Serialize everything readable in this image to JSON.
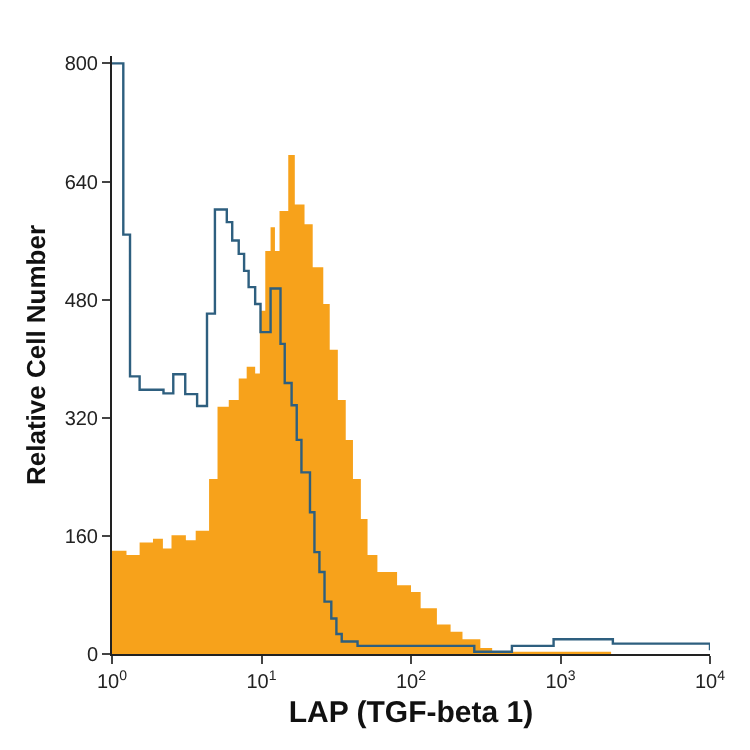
{
  "chart_data": {
    "type": "area",
    "xlabel": "LAP (TGF-beta 1)",
    "ylabel": "Relative Cell Number",
    "log": "x",
    "xlim": [
      1,
      10000
    ],
    "xticks": [
      {
        "value": 1,
        "label": "10$^{0}$"
      },
      {
        "value": 10,
        "label": "10$^{1}$"
      },
      {
        "value": 100,
        "label": "10$^{2}$"
      },
      {
        "value": 1000,
        "label": "10$^{3}$"
      },
      {
        "value": 10000,
        "label": "10$^{4}$"
      }
    ],
    "ylim": [
      0,
      810
    ],
    "yticks": [
      0,
      160,
      320,
      480,
      640,
      800
    ],
    "series": [
      {
        "color": "#f7a21b",
        "x": [
          1,
          1.25,
          1.53,
          1.88,
          2.19,
          2.5,
          3.12,
          3.63,
          4.46,
          5.08,
          6.04,
          7.04,
          7.96,
          9.07,
          9.75,
          10.6,
          11.5,
          12.3,
          13.2,
          15.1,
          16.7,
          19.4,
          22.0,
          25.9,
          28.6,
          32.4,
          36.6,
          40.9,
          46.2,
          51.2,
          59.6,
          80.7,
          100,
          116,
          149,
          184,
          221,
          291,
          349,
          2180,
          10000
        ],
        "values": [
          140,
          134,
          151,
          156,
          143,
          161,
          154,
          167,
          237,
          335,
          344,
          373,
          389,
          380,
          465,
          546,
          578,
          546,
          600,
          676,
          609,
          582,
          524,
          474,
          412,
          344,
          290,
          237,
          183,
          134,
          111,
          93,
          84,
          62,
          40,
          30,
          20,
          8,
          3,
          0,
          0
        ]
      },
      {
        "type": "step",
        "color": "#2e5f7f",
        "x": [
          1,
          1.19,
          1.32,
          1.53,
          2.21,
          2.57,
          3.09,
          3.71,
          4.32,
          4.88,
          5.86,
          6.37,
          7.04,
          7.65,
          8.2,
          9.07,
          9.85,
          11.5,
          13.4,
          14.3,
          15.9,
          17.2,
          18.5,
          21.1,
          22.6,
          24.4,
          26.4,
          29.3,
          31.7,
          34.4,
          43.9,
          221,
          265,
          473,
          899,
          2240,
          10000
        ],
        "values": [
          800,
          568,
          376,
          358,
          353,
          379,
          352,
          336,
          461,
          602,
          585,
          560,
          542,
          519,
          497,
          474,
          436,
          495,
          420,
          367,
          337,
          290,
          246,
          192,
          138,
          111,
          71,
          48,
          27,
          17,
          11,
          11,
          3,
          11,
          20,
          14,
          5
        ]
      }
    ]
  }
}
